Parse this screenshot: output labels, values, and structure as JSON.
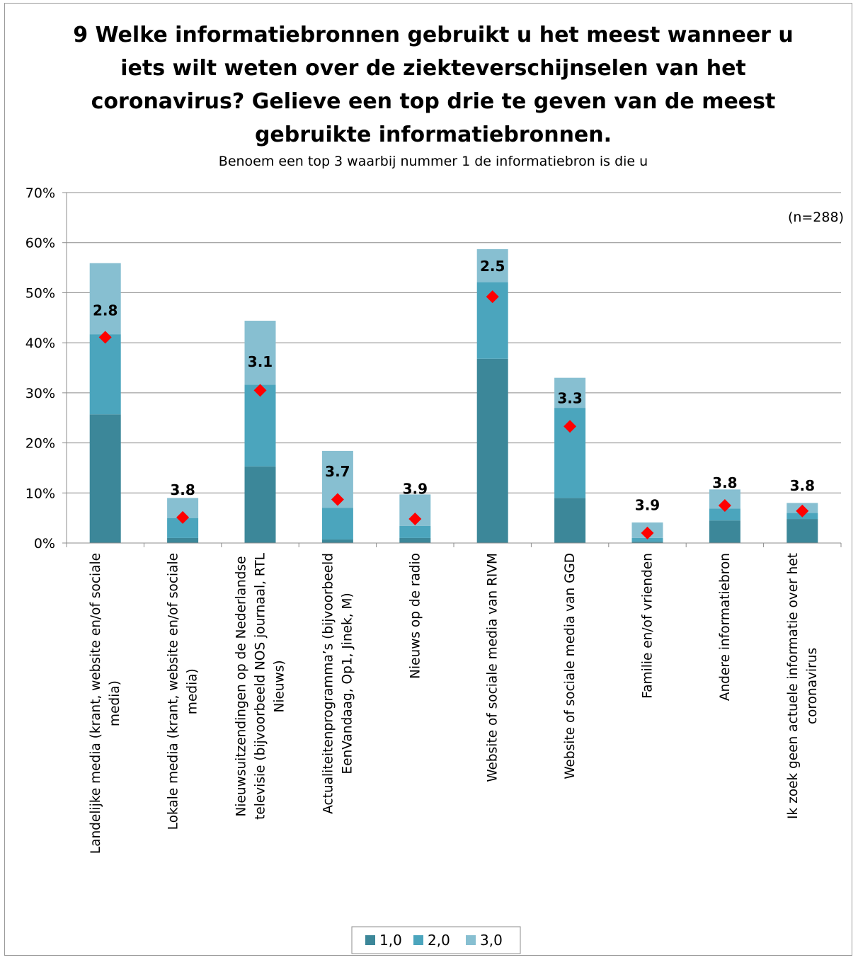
{
  "chart_data": {
    "type": "bar",
    "stacked": true,
    "title_lines": [
      "9 Welke informatiebronnen gebruikt u het meest wanneer u",
      "iets wilt weten over de ziekteverschijnselen van het",
      "coronavirus? Gelieve een top drie te geven van de meest",
      "gebruikte informatiebronnen."
    ],
    "subtitle": "Benoem een top 3 waarbij nummer 1 de informatiebron is die u",
    "note": "(n=288)",
    "ylim": [
      0,
      70
    ],
    "y_ticks": [
      0,
      10,
      20,
      30,
      40,
      50,
      60,
      70
    ],
    "y_tick_labels": [
      "0%",
      "10%",
      "20%",
      "30%",
      "40%",
      "50%",
      "60%",
      "70%"
    ],
    "grid": true,
    "legend_position": "bottom",
    "categories": [
      [
        "Landelijke media (krant, website en/of sociale",
        "media)"
      ],
      [
        "Lokale media (krant, website en/of sociale",
        "media)"
      ],
      [
        "Nieuwsuitzendingen op de Nederlandse",
        "televisie (bijvoorbeeld NOS journaal, RTL",
        "Nieuws)"
      ],
      [
        "Actualiteitenprogramma’s (bijvoorbeeld",
        "EenVandaag, Op1, Jinek, M)"
      ],
      [
        "Nieuws op de radio"
      ],
      [
        "Website of sociale media van RIVM"
      ],
      [
        "Website of sociale media van GGD"
      ],
      [
        "Familie en/of vrienden"
      ],
      [
        "Andere informatiebron"
      ],
      [
        "Ik zoek geen actuele informatie over het",
        "coronavirus"
      ]
    ],
    "series": [
      {
        "name": "1,0",
        "color": "#3c8799",
        "values": [
          25.7,
          1.0,
          15.3,
          0.7,
          1.0,
          36.8,
          9.0,
          0.3,
          4.5,
          4.8
        ]
      },
      {
        "name": "2,0",
        "color": "#4ba5bd",
        "values": [
          16.0,
          4.0,
          16.3,
          6.3,
          2.4,
          15.3,
          18.0,
          0.7,
          2.4,
          1.2
        ]
      },
      {
        "name": "3,0",
        "color": "#87bfd1",
        "values": [
          14.2,
          4.0,
          12.8,
          11.4,
          6.3,
          6.6,
          6.0,
          3.1,
          3.8,
          2.0
        ]
      }
    ],
    "average_rank": {
      "marker_color": "#ff0000",
      "marker_y": [
        41.1,
        5.1,
        30.5,
        8.7,
        4.8,
        49.2,
        23.3,
        2.0,
        7.5,
        6.4
      ],
      "labels": [
        "2.8",
        "3.8",
        "3.1",
        "3.7",
        "3.9",
        "2.5",
        "3.3",
        "3.9",
        "3.8",
        "3.8"
      ],
      "label_y": [
        45.5,
        9.6,
        35.2,
        13.3,
        9.8,
        54.3,
        27.9,
        6.6,
        11.0,
        10.5
      ]
    }
  }
}
